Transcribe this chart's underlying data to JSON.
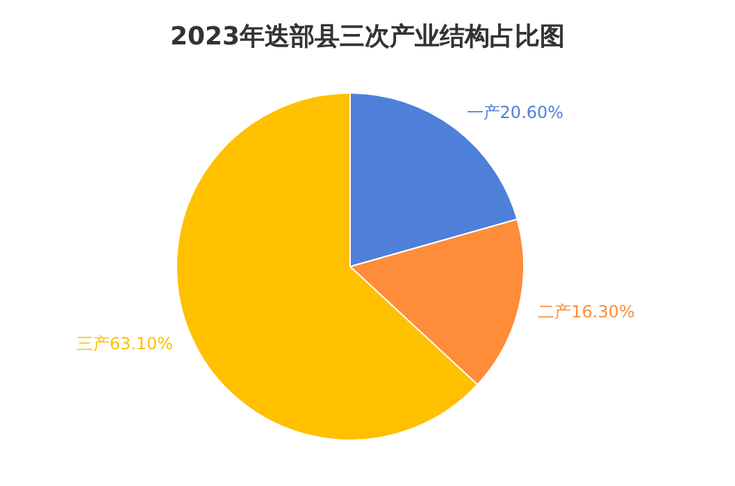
{
  "chart_data": {
    "type": "pie",
    "title": "2023年迭部县三次产业结构占比图",
    "categories": [
      "一产",
      "二产",
      "三产"
    ],
    "values": [
      20.6,
      16.3,
      63.1
    ],
    "value_labels": [
      "20.60%",
      "16.30%",
      "63.10%"
    ],
    "colors": [
      "#4e7fd9",
      "#ff8c38",
      "#ffc000"
    ]
  }
}
